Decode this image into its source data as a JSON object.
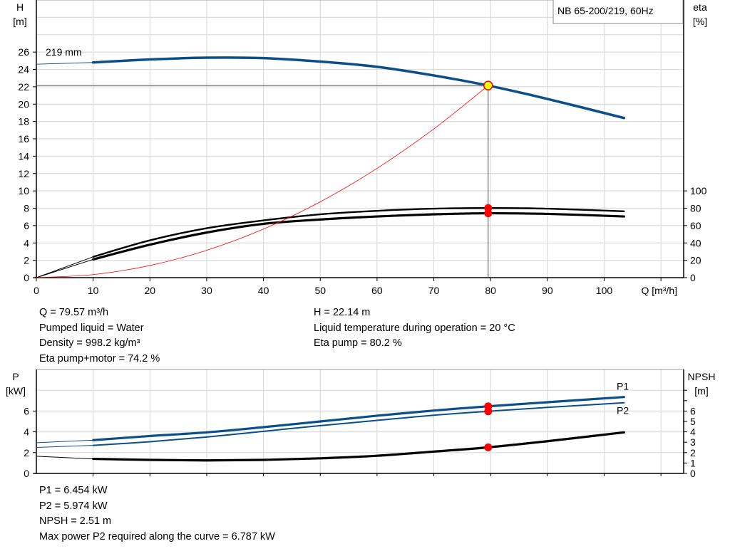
{
  "chart_data": [
    {
      "type": "line",
      "title": "NB 65-200/219, 60Hz",
      "xlabel": "Q [m³/h]",
      "ylabel": "H",
      "ylabel_unit": "[m]",
      "y2label": "eta",
      "y2label_unit": "[%]",
      "xlim": [
        0,
        114
      ],
      "ylim": [
        0,
        32
      ],
      "y2lim": [
        0,
        320
      ],
      "xticks": [
        "0",
        "10",
        "20",
        "30",
        "40",
        "50",
        "60",
        "70",
        "80",
        "90",
        "100"
      ],
      "yticks": [
        "0",
        "2",
        "4",
        "6",
        "8",
        "10",
        "12",
        "14",
        "16",
        "18",
        "20",
        "22",
        "24",
        "26"
      ],
      "y2ticks": [
        "0",
        "20",
        "40",
        "60",
        "80",
        "100"
      ],
      "grid": true,
      "curve_label": "219 mm",
      "series": [
        {
          "key": "H",
          "color": "#0b4f8a",
          "axis": "y",
          "x": [
            0,
            10,
            20,
            30,
            40,
            50,
            60,
            70,
            79.57,
            90,
            103.5
          ],
          "y": [
            24.6,
            24.8,
            25.15,
            25.35,
            25.3,
            24.9,
            24.3,
            23.3,
            22.14,
            20.6,
            18.4
          ]
        },
        {
          "key": "eta_pump",
          "color": "#000000",
          "axis": "y2",
          "x": [
            0,
            10,
            20,
            30,
            40,
            50,
            60,
            70,
            79.57,
            90,
            103.5
          ],
          "y": [
            0,
            24,
            43,
            57,
            66,
            73,
            77,
            79.5,
            80.2,
            79.5,
            76.5
          ]
        },
        {
          "key": "eta_pump_motor",
          "color": "#000000",
          "axis": "y2",
          "x": [
            0,
            10,
            20,
            30,
            40,
            50,
            60,
            70,
            79.57,
            90,
            103.5
          ],
          "y": [
            0,
            21,
            38,
            52,
            62,
            67,
            70.5,
            73,
            74.2,
            73.5,
            70.5
          ]
        },
        {
          "key": "system_curve",
          "color": "#ff0000",
          "axis": "y",
          "x": [
            0,
            10,
            20,
            30,
            40,
            50,
            60,
            70,
            79.57
          ],
          "y": [
            0,
            0.35,
            1.4,
            3.15,
            5.6,
            8.74,
            12.59,
            17.14,
            22.14
          ]
        }
      ],
      "operating_point": {
        "Q": 79.57,
        "H": 22.14,
        "eta_pump": 80.2,
        "eta_pump_motor": 74.2
      }
    },
    {
      "type": "line",
      "xlabel": "",
      "ylabel": "P",
      "ylabel_unit": "[kW]",
      "y2label": "NPSH",
      "y2label_unit": "[m]",
      "xlim": [
        0,
        114
      ],
      "ylim": [
        0,
        10
      ],
      "y2lim": [
        0,
        10
      ],
      "yticks": [
        "0",
        "2",
        "4",
        "6"
      ],
      "y2ticks": [
        "0",
        "1",
        "2",
        "3",
        "4",
        "5",
        "6"
      ],
      "grid": true,
      "series": [
        {
          "key": "P1",
          "name": "P1",
          "color": "#0b4f8a",
          "x": [
            0,
            10,
            20,
            30,
            40,
            50,
            60,
            70,
            79.57,
            90,
            103.5
          ],
          "y": [
            2.95,
            3.2,
            3.6,
            3.95,
            4.45,
            5.0,
            5.55,
            6.05,
            6.454,
            6.85,
            7.35
          ]
        },
        {
          "key": "P2",
          "name": "P2",
          "color": "#0b4f8a",
          "x": [
            0,
            10,
            20,
            30,
            40,
            50,
            60,
            70,
            79.57,
            90,
            103.5
          ],
          "y": [
            2.5,
            2.7,
            3.05,
            3.5,
            4.05,
            4.6,
            5.1,
            5.6,
            5.974,
            6.35,
            6.8
          ]
        },
        {
          "key": "NPSH",
          "color": "#000000",
          "x": [
            0,
            10,
            20,
            30,
            40,
            50,
            60,
            70,
            79.57,
            90,
            103.5
          ],
          "y": [
            1.65,
            1.4,
            1.3,
            1.25,
            1.3,
            1.45,
            1.7,
            2.1,
            2.51,
            3.1,
            3.95
          ]
        }
      ],
      "operating_point": {
        "Q": 79.57,
        "P1": 6.454,
        "P2": 5.974,
        "NPSH": 2.51
      }
    }
  ],
  "info_top": {
    "q": "Q = 79.57 m³/h",
    "liquid": "Pumped liquid = Water",
    "density": "Density = 998.2 kg/m³",
    "eta_total": "Eta pump+motor = 74.2 %",
    "h": "H = 22.14 m",
    "temp": "Liquid temperature during operation = 20 °C",
    "eta_pump": "Eta pump = 80.2 %"
  },
  "info_bottom": {
    "p1": "P1 = 6.454 kW",
    "p2": "P2 = 5.974 kW",
    "npsh": "NPSH = 2.51 m",
    "max_p2": "Max power P2 required along the curve = 6.787 kW"
  }
}
